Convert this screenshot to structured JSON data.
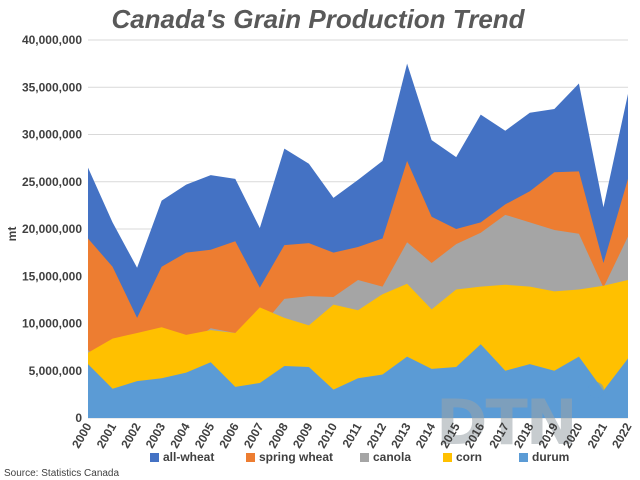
{
  "source": "Source: Statistics Canada",
  "logo_text": "DTN",
  "chart_data": {
    "type": "area",
    "title": "Canada's Grain Production Trend",
    "xlabel": "",
    "ylabel": "mt",
    "ylim": [
      0,
      40000000
    ],
    "yticks": [
      "0",
      "5,000,000",
      "10,000,000",
      "15,000,000",
      "20,000,000",
      "25,000,000",
      "30,000,000",
      "35,000,000",
      "40,000,000"
    ],
    "grid": true,
    "legend_position": "bottom",
    "categories": [
      "2000",
      "2001",
      "2002",
      "2003",
      "2004",
      "2005",
      "2006",
      "2007",
      "2008",
      "2009",
      "2010",
      "2011",
      "2012",
      "2013",
      "2014",
      "2015",
      "2016",
      "2017",
      "2018",
      "2019",
      "2020",
      "2021",
      "2022"
    ],
    "series": [
      {
        "name": "all-wheat",
        "color": "#4472c4",
        "values": [
          26500000,
          20700000,
          15900000,
          23000000,
          24700000,
          25700000,
          25300000,
          20100000,
          28500000,
          26900000,
          23300000,
          25200000,
          27200000,
          37500000,
          29400000,
          27600000,
          32100000,
          30400000,
          32300000,
          32700000,
          35400000,
          22300000,
          34300000
        ]
      },
      {
        "name": "spring wheat",
        "color": "#ed7d31",
        "values": [
          19000000,
          16000000,
          10600000,
          16000000,
          17500000,
          17800000,
          18700000,
          13800000,
          18300000,
          18500000,
          17500000,
          18100000,
          19000000,
          27200000,
          21300000,
          20000000,
          20700000,
          22600000,
          24000000,
          26000000,
          26100000,
          16400000,
          25300000
        ]
      },
      {
        "name": "canola",
        "color": "#a5a5a5",
        "values": [
          7200000,
          5000000,
          4500000,
          6800000,
          7700000,
          9500000,
          9000000,
          9500000,
          12600000,
          12900000,
          12800000,
          14600000,
          13900000,
          18600000,
          16400000,
          18400000,
          19600000,
          21500000,
          20700000,
          19900000,
          19500000,
          13800000,
          19200000
        ]
      },
      {
        "name": "corn",
        "color": "#ffc000",
        "values": [
          6900000,
          8400000,
          9000000,
          9600000,
          8800000,
          9300000,
          9000000,
          11700000,
          10600000,
          9800000,
          12000000,
          11400000,
          13100000,
          14200000,
          11500000,
          13600000,
          13900000,
          14100000,
          13900000,
          13400000,
          13600000,
          14000000,
          14600000
        ]
      },
      {
        "name": "durum",
        "color": "#5b9bd5",
        "values": [
          5700000,
          3100000,
          3900000,
          4200000,
          4800000,
          5900000,
          3300000,
          3700000,
          5500000,
          5400000,
          3000000,
          4200000,
          4600000,
          6500000,
          5200000,
          5400000,
          7800000,
          5000000,
          5700000,
          5000000,
          6500000,
          2900000,
          6300000
        ]
      }
    ]
  }
}
